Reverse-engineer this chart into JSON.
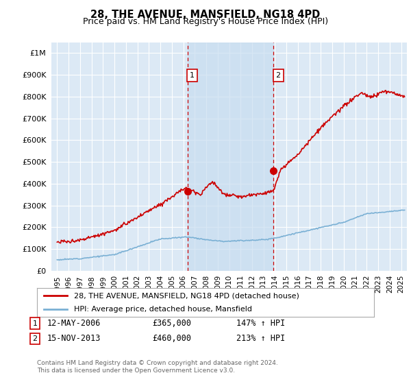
{
  "title": "28, THE AVENUE, MANSFIELD, NG18 4PD",
  "subtitle": "Price paid vs. HM Land Registry's House Price Index (HPI)",
  "red_label": "28, THE AVENUE, MANSFIELD, NG18 4PD (detached house)",
  "blue_label": "HPI: Average price, detached house, Mansfield",
  "vline1_x": 2006.37,
  "vline2_x": 2013.88,
  "marker1_price": 365000,
  "marker2_price": 460000,
  "annotation1": {
    "num": "1",
    "date": "12-MAY-2006",
    "price": "£365,000",
    "hpi": "147% ↑ HPI"
  },
  "annotation2": {
    "num": "2",
    "date": "15-NOV-2013",
    "price": "£460,000",
    "hpi": "213% ↑ HPI"
  },
  "footnote": "Contains HM Land Registry data © Crown copyright and database right 2024.\nThis data is licensed under the Open Government Licence v3.0.",
  "ylim": [
    0,
    1050000
  ],
  "xlim": [
    1994.5,
    2025.5
  ],
  "background_color": "#ffffff",
  "plot_bg_color": "#dce9f5",
  "grid_color": "#ffffff",
  "red_color": "#cc0000",
  "blue_color": "#7ab0d4",
  "vline_color": "#cc0000",
  "span_color": "#c8ddf0"
}
